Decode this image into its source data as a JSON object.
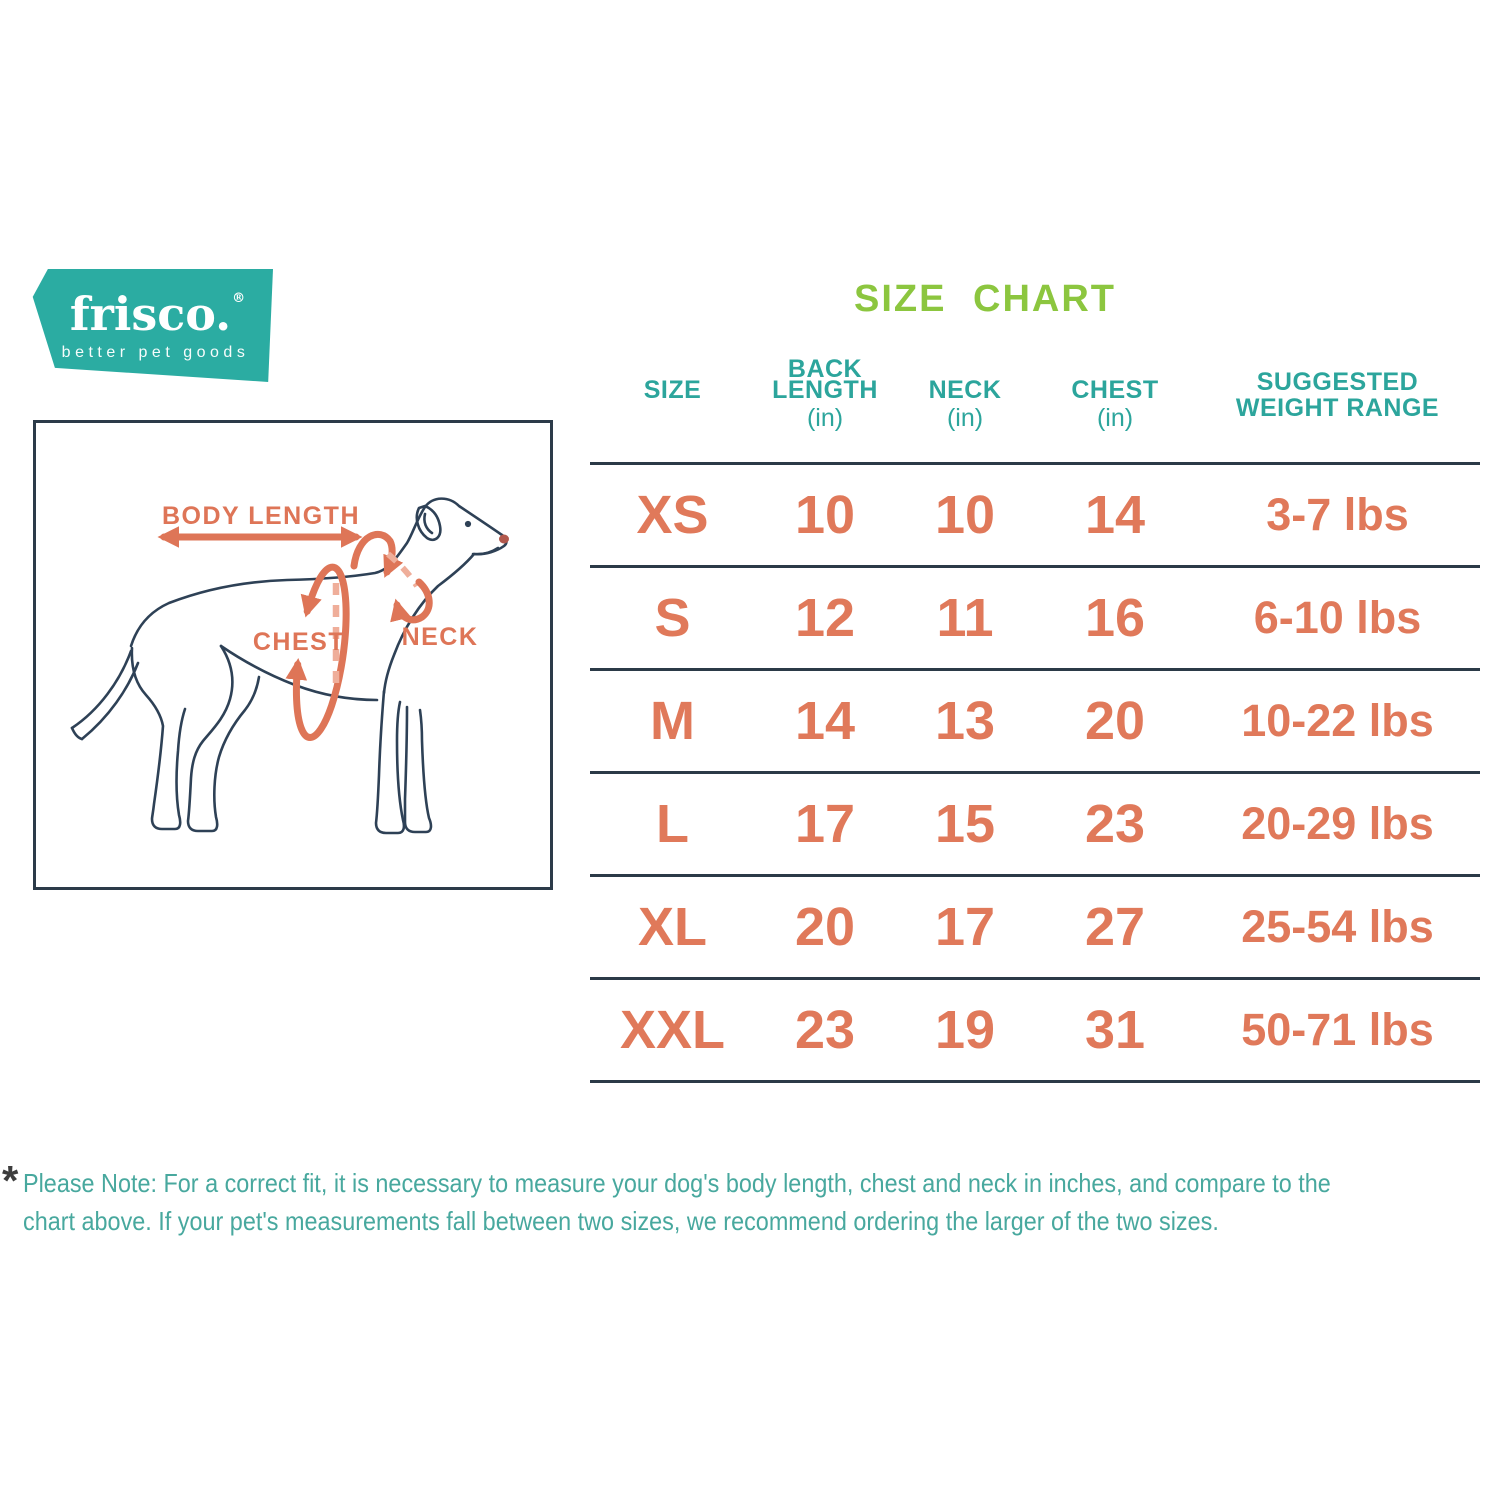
{
  "logo": {
    "brand": "frisco.",
    "registered": "®",
    "tagline": "better pet goods"
  },
  "diagram": {
    "labels": {
      "body_length": "BODY LENGTH",
      "chest": "CHEST",
      "neck": "NECK"
    }
  },
  "size_chart": {
    "title": "SIZE CHART",
    "columns": [
      {
        "label": "SIZE"
      },
      {
        "line1": "BACK",
        "line2": "LENGTH",
        "unit": "(in)"
      },
      {
        "label": "NECK",
        "unit": "(in)"
      },
      {
        "label": "CHEST",
        "unit": "(in)"
      },
      {
        "line1": "SUGGESTED",
        "line2": "WEIGHT RANGE"
      }
    ],
    "rows": [
      {
        "size": "XS",
        "back_length": "10",
        "neck": "10",
        "chest": "14",
        "weight": "3-7 lbs"
      },
      {
        "size": "S",
        "back_length": "12",
        "neck": "11",
        "chest": "16",
        "weight": "6-10 lbs"
      },
      {
        "size": "M",
        "back_length": "14",
        "neck": "13",
        "chest": "20",
        "weight": "10-22 lbs"
      },
      {
        "size": "L",
        "back_length": "17",
        "neck": "15",
        "chest": "23",
        "weight": "20-29 lbs"
      },
      {
        "size": "XL",
        "back_length": "20",
        "neck": "17",
        "chest": "27",
        "weight": "25-54 lbs"
      },
      {
        "size": "XXL",
        "back_length": "23",
        "neck": "19",
        "chest": "31",
        "weight": "50-71 lbs"
      }
    ]
  },
  "note": {
    "asterisk": "*",
    "line1": "Please Note: For a correct fit, it is necessary to measure your dog's body length, chest and neck in inches, and compare to the",
    "line2": "chart above. If your pet's measurements fall between two sizes, we recommend ordering the larger of the two sizes."
  },
  "colors": {
    "brand_teal": "#2BACA2",
    "header_teal": "#2CA59C",
    "title_green": "#8CC63F",
    "value_orange": "#E0795A",
    "annotation_orange": "#DE7557",
    "annotation_light_orange": "#EFAE9A",
    "line_navy": "#2B3A47",
    "dog_outline_navy": "#2E4156",
    "note_teal": "#48A89E"
  }
}
